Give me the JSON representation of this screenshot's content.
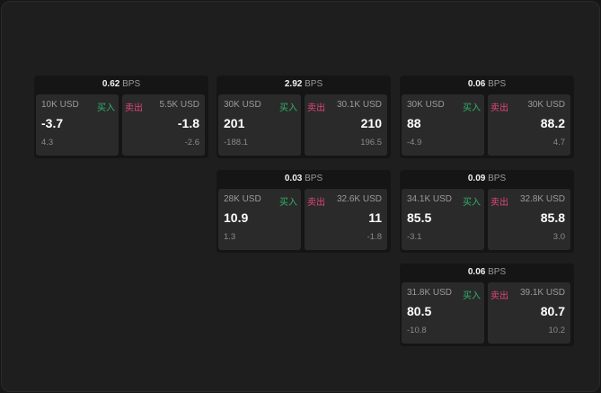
{
  "unit": "BPS",
  "buy_label": "买入",
  "sell_label": "卖出",
  "colors": {
    "buy": "#2fb36a",
    "sell": "#e0457b"
  },
  "cards": [
    {
      "spread": "0.62",
      "bid_size": "10K USD",
      "bid": "-3.7",
      "bid_change": "4.3",
      "ask_size": "5.5K USD",
      "ask": "-1.8",
      "ask_change": "-2.6"
    },
    {
      "spread": "2.92",
      "bid_size": "30K USD",
      "bid": "201",
      "bid_change": "-188.1",
      "ask_size": "30.1K USD",
      "ask": "210",
      "ask_change": "196.5"
    },
    {
      "spread": "0.06",
      "bid_size": "30K USD",
      "bid": "88",
      "bid_change": "-4.9",
      "ask_size": "30K USD",
      "ask": "88.2",
      "ask_change": "4.7"
    },
    {
      "spread": "0.03",
      "bid_size": "28K USD",
      "bid": "10.9",
      "bid_change": "1.3",
      "ask_size": "32.6K USD",
      "ask": "11",
      "ask_change": "-1.8"
    },
    {
      "spread": "0.09",
      "bid_size": "34.1K USD",
      "bid": "85.5",
      "bid_change": "-3.1",
      "ask_size": "32.8K USD",
      "ask": "85.8",
      "ask_change": "3.0"
    },
    {
      "spread": "0.06",
      "bid_size": "31.8K USD",
      "bid": "80.5",
      "bid_change": "-10.8",
      "ask_size": "39.1K USD",
      "ask": "80.7",
      "ask_change": "10.2"
    }
  ]
}
